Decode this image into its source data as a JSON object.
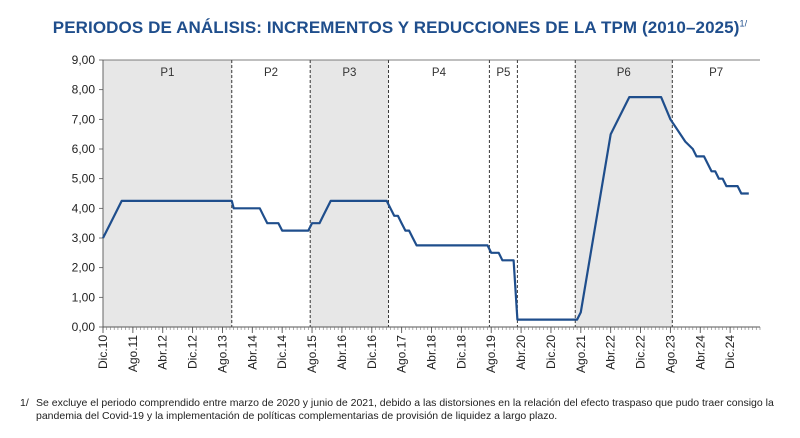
{
  "title": "PERIODOS DE ANÁLISIS: INCREMENTOS Y REDUCCIONES DE LA TPM (2010–2025)",
  "title_footnote_mark": "1/",
  "footnote": {
    "mark": "1/",
    "text": "Se excluye el periodo comprendido entre marzo de 2020 y junio de 2021, debido a las distorsiones en la relación del efecto traspaso que pudo traer consigo la pandemia del Covid-19 y la implementación de políticas complementarias de provisión de liquidez a largo plazo."
  },
  "colors": {
    "line": "#1f4e8c",
    "shade": "#e7e7e7",
    "title": "#1f4e8c"
  },
  "chart_data": {
    "type": "line",
    "title": "PERIODOS DE ANÁLISIS: INCREMENTOS Y REDUCCIONES DE LA TPM (2010–2025)",
    "xlabel": "",
    "ylabel": "",
    "ylim": [
      0,
      9
    ],
    "yticks": [
      "0,00",
      "1,00",
      "2,00",
      "3,00",
      "4,00",
      "5,00",
      "6,00",
      "7,00",
      "8,00",
      "9,00"
    ],
    "xlim": [
      0,
      176
    ],
    "xticks": [
      {
        "pos": 0,
        "label": "Dic.10"
      },
      {
        "pos": 8,
        "label": "Ago.11"
      },
      {
        "pos": 16,
        "label": "Abr.12"
      },
      {
        "pos": 24,
        "label": "Dic.12"
      },
      {
        "pos": 32,
        "label": "Ago.13"
      },
      {
        "pos": 40,
        "label": "Abr.14"
      },
      {
        "pos": 48,
        "label": "Dic.14"
      },
      {
        "pos": 56,
        "label": "Ago.15"
      },
      {
        "pos": 64,
        "label": "Abr.16"
      },
      {
        "pos": 72,
        "label": "Dic.16"
      },
      {
        "pos": 80,
        "label": "Ago.17"
      },
      {
        "pos": 88,
        "label": "Abr.18"
      },
      {
        "pos": 96,
        "label": "Dic.18"
      },
      {
        "pos": 104,
        "label": "Ago.19"
      },
      {
        "pos": 112,
        "label": "Abr.20"
      },
      {
        "pos": 120,
        "label": "Dic.20"
      },
      {
        "pos": 128,
        "label": "Ago.21"
      },
      {
        "pos": 136,
        "label": "Abr.22"
      },
      {
        "pos": 144,
        "label": "Dic.22"
      },
      {
        "pos": 152,
        "label": "Ago.23"
      },
      {
        "pos": 160,
        "label": "Abr.24"
      },
      {
        "pos": 168,
        "label": "Dic.24"
      }
    ],
    "periods": [
      {
        "label": "P1",
        "start": 0,
        "end": 34.5,
        "shaded": true
      },
      {
        "label": "P2",
        "start": 34.5,
        "end": 55.5,
        "shaded": false
      },
      {
        "label": "P3",
        "start": 55.5,
        "end": 76.5,
        "shaded": true
      },
      {
        "label": "P4",
        "start": 76.5,
        "end": 103.5,
        "shaded": false
      },
      {
        "label": "P5",
        "start": 103.5,
        "end": 111,
        "shaded": false
      },
      {
        "label": "P6",
        "start": 126.5,
        "end": 152.5,
        "shaded": true
      },
      {
        "label": "P7",
        "start": 152.5,
        "end": 176,
        "shaded": false
      }
    ],
    "series": [
      {
        "name": "TPM",
        "points": [
          [
            0,
            3.0
          ],
          [
            2,
            3.5
          ],
          [
            5,
            4.25
          ],
          [
            34.5,
            4.25
          ],
          [
            35,
            4.0
          ],
          [
            42,
            4.0
          ],
          [
            43,
            3.75
          ],
          [
            44,
            3.5
          ],
          [
            47,
            3.5
          ],
          [
            48,
            3.25
          ],
          [
            55,
            3.25
          ],
          [
            56,
            3.5
          ],
          [
            58,
            3.5
          ],
          [
            59,
            3.75
          ],
          [
            61,
            4.25
          ],
          [
            76,
            4.25
          ],
          [
            77,
            4.0
          ],
          [
            78,
            3.75
          ],
          [
            79,
            3.75
          ],
          [
            80,
            3.5
          ],
          [
            81,
            3.25
          ],
          [
            82,
            3.25
          ],
          [
            83,
            3.0
          ],
          [
            84,
            2.75
          ],
          [
            103,
            2.75
          ],
          [
            104,
            2.5
          ],
          [
            106,
            2.5
          ],
          [
            107,
            2.25
          ],
          [
            110,
            2.25
          ],
          [
            111,
            0.25
          ],
          [
            127,
            0.25
          ],
          [
            128,
            0.5
          ],
          [
            136,
            6.5
          ],
          [
            141,
            7.75
          ],
          [
            149.5,
            7.75
          ],
          [
            152,
            7.0
          ],
          [
            156,
            6.25
          ],
          [
            158,
            6.0
          ],
          [
            159,
            5.75
          ],
          [
            161,
            5.75
          ],
          [
            163,
            5.25
          ],
          [
            164,
            5.25
          ],
          [
            165,
            5.0
          ],
          [
            166,
            5.0
          ],
          [
            167,
            4.75
          ],
          [
            170,
            4.75
          ],
          [
            171,
            4.5
          ],
          [
            173,
            4.5
          ]
        ]
      }
    ]
  }
}
